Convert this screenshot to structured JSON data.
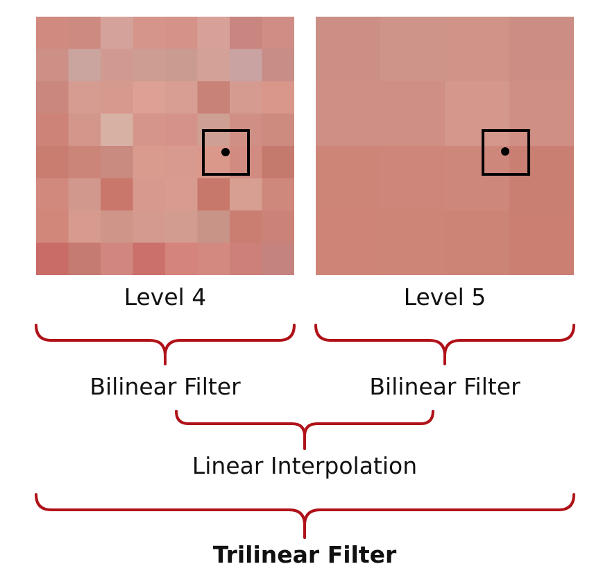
{
  "level_labels": {
    "left": "Level 4",
    "right": "Level 5"
  },
  "bilinear_labels": {
    "left": "Bilinear Filter",
    "right": "Bilinear Filter"
  },
  "interpolation_label": "Linear Interpolation",
  "result_label": "Trilinear Filter",
  "colors": {
    "bracket": "#b01219",
    "text": "#111111",
    "sample_box": "#000000"
  },
  "textures": {
    "left": {
      "grid": 8,
      "pixels": [
        [
          "#d08a80",
          "#cd8a80",
          "#d4a29a",
          "#d5958b",
          "#d49289",
          "#d8a198",
          "#c98680",
          "#cf8d86"
        ],
        [
          "#cd9086",
          "#caa49e",
          "#d09a90",
          "#cd9c93",
          "#c99b91",
          "#d4a198",
          "#c9a2a2",
          "#c98d88"
        ],
        [
          "#c9877d",
          "#d69c91",
          "#d6998e",
          "#dca094",
          "#d89e93",
          "#c98278",
          "#d59b91",
          "#d9968a"
        ],
        [
          "#cd8377",
          "#d2968a",
          "#d8b1a5",
          "#d6958a",
          "#d5928a",
          "#cda093",
          "#d08f85",
          "#cd8a7f"
        ],
        [
          "#c97c70",
          "#cb8579",
          "#c98a80",
          "#d89b8e",
          "#d89a8e",
          "#da988a",
          "#d18b80",
          "#c57a6e"
        ],
        [
          "#d2897d",
          "#d1998d",
          "#c9776a",
          "#d7998d",
          "#d79c8f",
          "#c7786a",
          "#d79e92",
          "#cf887c"
        ],
        [
          "#d2877b",
          "#d69a8e",
          "#d09589",
          "#d59a8f",
          "#d39c91",
          "#c89488",
          "#c97e71",
          "#cb8278"
        ],
        [
          "#c96b66",
          "#c57a72",
          "#d1877f",
          "#cb706b",
          "#d4847c",
          "#d38980",
          "#cc8079",
          "#c5837f"
        ]
      ]
    },
    "right": {
      "grid": 4,
      "pixels": [
        [
          "#cb8f85",
          "#ce9389",
          "#cf9388",
          "#cb8e84"
        ],
        [
          "#d08f84",
          "#d08f84",
          "#d3978c",
          "#cf8f85"
        ],
        [
          "#cd8577",
          "#cd8679",
          "#ce887b",
          "#c98073"
        ],
        [
          "#ce8577",
          "#cd8578",
          "#cc8477",
          "#ca7f72"
        ]
      ]
    }
  }
}
